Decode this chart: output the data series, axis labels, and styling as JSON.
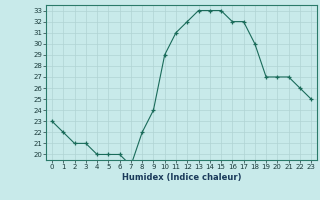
{
  "xlabel": "Humidex (Indice chaleur)",
  "ylabel": "",
  "x": [
    0,
    1,
    2,
    3,
    4,
    5,
    6,
    7,
    8,
    9,
    10,
    11,
    12,
    13,
    14,
    15,
    16,
    17,
    18,
    19,
    20,
    21,
    22,
    23
  ],
  "y": [
    23,
    22,
    21,
    21,
    20,
    20,
    20,
    19,
    22,
    24,
    29,
    31,
    32,
    33,
    33,
    33,
    32,
    32,
    30,
    27,
    27,
    27,
    26,
    25
  ],
  "line_color": "#1a6b5a",
  "marker_color": "#1a6b5a",
  "bg_color": "#c8eaea",
  "grid_color": "#b0d4d4",
  "ylim_min": 19.5,
  "ylim_max": 33.5,
  "yticks": [
    20,
    21,
    22,
    23,
    24,
    25,
    26,
    27,
    28,
    29,
    30,
    31,
    32,
    33
  ],
  "xticks": [
    0,
    1,
    2,
    3,
    4,
    5,
    6,
    7,
    8,
    9,
    10,
    11,
    12,
    13,
    14,
    15,
    16,
    17,
    18,
    19,
    20,
    21,
    22,
    23
  ],
  "tick_fontsize": 5.0,
  "xlabel_fontsize": 6.0
}
